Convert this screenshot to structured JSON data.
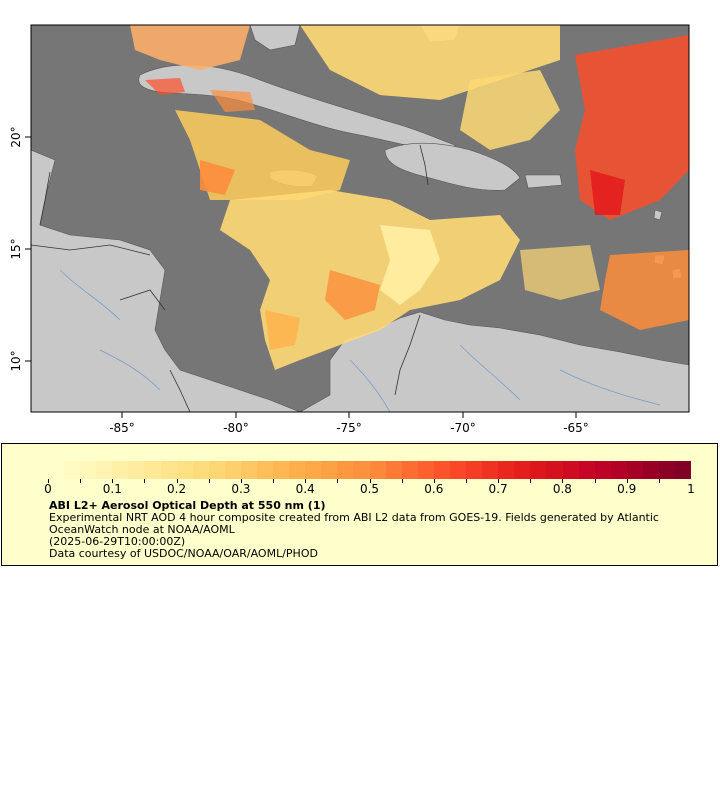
{
  "map": {
    "lon_labels": [
      "-85°",
      "-80°",
      "-75°",
      "-70°",
      "-65°"
    ],
    "lat_labels": [
      "20°",
      "15°",
      "10°"
    ],
    "colors": {
      "ocean": "#767676",
      "land": "#c8c8c8",
      "rivers": "#7a9cc6",
      "borders": "#333333"
    }
  },
  "legend": {
    "tick_labels": [
      "0",
      "0.1",
      "0.2",
      "0.3",
      "0.4",
      "0.5",
      "0.6",
      "0.7",
      "0.8",
      "0.9",
      "1"
    ],
    "colors": [
      "#ffffcc",
      "#ffeda0",
      "#fed976",
      "#feb24c",
      "#fd8d3c",
      "#fc4e2a",
      "#e31a1c",
      "#bd0026",
      "#800026"
    ],
    "title": "ABI L2+ Aerosol Optical Depth at 550 nm (1)",
    "line1": "Experimental NRT AOD 4 hour composite created from ABI L2 data from GOES-19. Fields generated by Atlantic OceanWatch node at NOAA/AOML",
    "line2": "(2025-06-29T10:00:00Z)",
    "line3": "Data courtesy of USDOC/NOAA/OAR/AOML/PHOD"
  }
}
